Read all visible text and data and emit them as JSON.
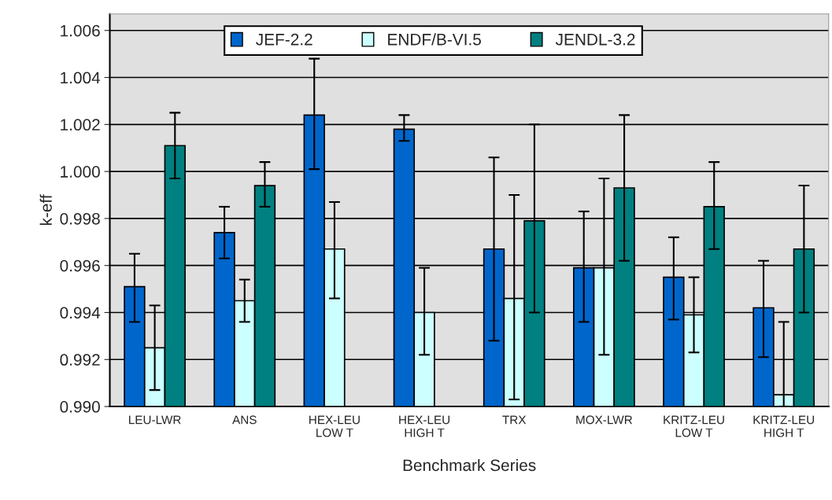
{
  "chart_data": {
    "type": "bar",
    "xlabel": "Benchmark Series",
    "ylabel": "k-eff",
    "categories": [
      "LEU-LWR",
      "ANS",
      "HEX-LEU\nLOW T",
      "HEX-LEU\nHIGH T",
      "TRX",
      "MOX-LWR",
      "KRITZ-LEU\nLOW T",
      "KRITZ-LEU\nHIGH T"
    ],
    "series": [
      {
        "name": "JEF-2.2",
        "color": "#0066cc",
        "values": [
          0.9951,
          0.9974,
          1.0024,
          1.0018,
          0.9967,
          0.9959,
          0.9955,
          0.9942
        ],
        "errors": [
          [
            0.9936,
            0.9965
          ],
          [
            0.9963,
            0.9985
          ],
          [
            1.0001,
            1.0048
          ],
          [
            1.0013,
            1.0024
          ],
          [
            0.9928,
            1.0006
          ],
          [
            0.9936,
            0.9983
          ],
          [
            0.9937,
            0.9972
          ],
          [
            0.9921,
            0.9962
          ]
        ]
      },
      {
        "name": "ENDF/B-VI.5",
        "color": "#ccffff",
        "values": [
          0.9925,
          0.9945,
          0.9967,
          0.994,
          0.9946,
          0.9959,
          0.9939,
          0.9905
        ],
        "errors": [
          [
            0.9907,
            0.9943
          ],
          [
            0.9936,
            0.9954
          ],
          [
            0.9946,
            0.9987
          ],
          [
            0.9922,
            0.9959
          ],
          [
            0.9903,
            0.999
          ],
          [
            0.9922,
            0.9997
          ],
          [
            0.9923,
            0.9955
          ],
          [
            0.99,
            0.9936
          ]
        ]
      },
      {
        "name": "JENDL-3.2",
        "color": "#008080",
        "values": [
          1.0011,
          0.9994,
          null,
          null,
          0.9979,
          0.9993,
          0.9985,
          0.9967
        ],
        "errors": [
          [
            0.9997,
            1.0025
          ],
          [
            0.9985,
            1.0004
          ],
          null,
          null,
          [
            0.994,
            1.002
          ],
          [
            0.9962,
            1.0024
          ],
          [
            0.9967,
            1.0004
          ],
          [
            0.994,
            0.9994
          ]
        ]
      }
    ],
    "ylim": [
      0.99,
      1.0067
    ],
    "yticks": [
      {
        "value": 0.99,
        "label": "0.990"
      },
      {
        "value": 0.992,
        "label": "0.992"
      },
      {
        "value": 0.994,
        "label": "0.994"
      },
      {
        "value": 0.996,
        "label": "0.996"
      },
      {
        "value": 0.998,
        "label": "0.998"
      },
      {
        "value": 1.0,
        "label": "1.000"
      },
      {
        "value": 1.002,
        "label": "1.002"
      },
      {
        "value": 1.004,
        "label": "1.004"
      },
      {
        "value": 1.006,
        "label": "1.006"
      }
    ],
    "grid": "y",
    "legend": "top"
  }
}
